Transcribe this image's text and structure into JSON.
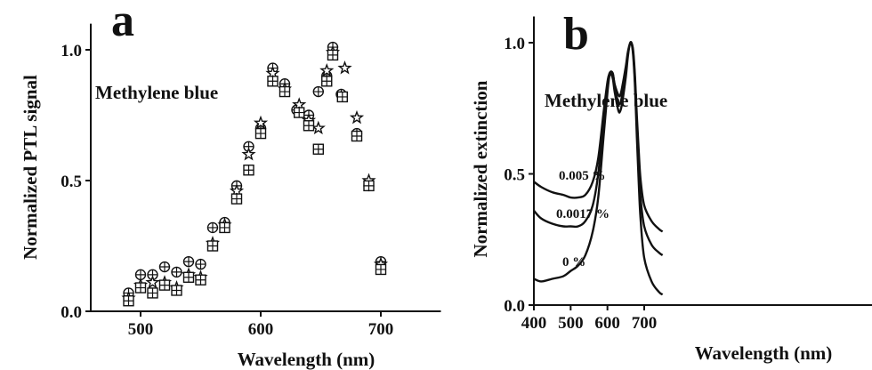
{
  "figure": {
    "bg": "#ffffff",
    "ink": "#111111"
  },
  "chart_data": [
    {
      "panel": "a",
      "type": "scatter",
      "annotation": "Methylene blue",
      "xlabel": "Wavelength (nm)",
      "ylabel": "Normalized PTL signal",
      "xlim": [
        450,
        750
      ],
      "ylim": [
        0.0,
        1.1
      ],
      "x_ticks": [
        500,
        600,
        700
      ],
      "x_tick_labels": [
        "500",
        "600",
        "700"
      ],
      "y_ticks": [
        0.0,
        0.5,
        1.0
      ],
      "y_tick_labels": [
        "0.0",
        "0.5",
        "1.0"
      ],
      "grid": false,
      "series": [
        {
          "marker": "circle-plus",
          "points": [
            [
              490,
              0.07
            ],
            [
              500,
              0.14
            ],
            [
              510,
              0.14
            ],
            [
              520,
              0.17
            ],
            [
              530,
              0.15
            ],
            [
              540,
              0.19
            ],
            [
              550,
              0.18
            ],
            [
              560,
              0.32
            ],
            [
              570,
              0.34
            ],
            [
              580,
              0.48
            ],
            [
              590,
              0.63
            ],
            [
              600,
              0.7
            ],
            [
              610,
              0.93
            ],
            [
              620,
              0.87
            ],
            [
              630,
              0.77
            ],
            [
              640,
              0.75
            ],
            [
              648,
              0.84
            ],
            [
              655,
              0.9
            ],
            [
              660,
              1.01
            ],
            [
              667,
              0.83
            ],
            [
              680,
              0.68
            ],
            [
              690,
              0.48
            ],
            [
              700,
              0.19
            ]
          ]
        },
        {
          "marker": "star",
          "points": [
            [
              490,
              0.05
            ],
            [
              500,
              0.1
            ],
            [
              510,
              0.11
            ],
            [
              520,
              0.11
            ],
            [
              530,
              0.09
            ],
            [
              540,
              0.14
            ],
            [
              550,
              0.13
            ],
            [
              560,
              0.26
            ],
            [
              570,
              0.33
            ],
            [
              580,
              0.46
            ],
            [
              590,
              0.6
            ],
            [
              600,
              0.72
            ],
            [
              610,
              0.91
            ],
            [
              620,
              0.85
            ],
            [
              632,
              0.79
            ],
            [
              640,
              0.73
            ],
            [
              648,
              0.7
            ],
            [
              655,
              0.92
            ],
            [
              660,
              0.99
            ],
            [
              670,
              0.93
            ],
            [
              680,
              0.74
            ],
            [
              690,
              0.5
            ],
            [
              700,
              0.18
            ]
          ]
        },
        {
          "marker": "square-plus",
          "points": [
            [
              490,
              0.04
            ],
            [
              500,
              0.09
            ],
            [
              510,
              0.07
            ],
            [
              520,
              0.1
            ],
            [
              530,
              0.08
            ],
            [
              540,
              0.13
            ],
            [
              550,
              0.12
            ],
            [
              560,
              0.25
            ],
            [
              570,
              0.32
            ],
            [
              580,
              0.43
            ],
            [
              590,
              0.54
            ],
            [
              600,
              0.68
            ],
            [
              610,
              0.88
            ],
            [
              620,
              0.84
            ],
            [
              632,
              0.76
            ],
            [
              640,
              0.71
            ],
            [
              648,
              0.62
            ],
            [
              655,
              0.88
            ],
            [
              660,
              0.98
            ],
            [
              668,
              0.82
            ],
            [
              680,
              0.67
            ],
            [
              690,
              0.48
            ],
            [
              700,
              0.16
            ]
          ]
        }
      ]
    },
    {
      "panel": "b",
      "type": "line",
      "annotation": "Methylene blue",
      "xlabel": "Wavelength (nm)",
      "ylabel": "Normalized extinction",
      "xlim": [
        400,
        750
      ],
      "ylim": [
        0.0,
        1.1
      ],
      "x_ticks": [
        400,
        500,
        600,
        700
      ],
      "x_tick_labels": [
        "400",
        "500",
        "600",
        "700"
      ],
      "y_ticks": [
        0.0,
        0.5,
        1.0
      ],
      "y_tick_labels": [
        "0.0",
        "0.5",
        "1.0"
      ],
      "grid": false,
      "series": [
        {
          "name": "0.005 %",
          "x": [
            400,
            420,
            450,
            480,
            500,
            520,
            540,
            560,
            575,
            590,
            600,
            605,
            610,
            615,
            620,
            630,
            635,
            640,
            650,
            655,
            660,
            665,
            670,
            675,
            680,
            685,
            690,
            700,
            720,
            740,
            750
          ],
          "y": [
            0.47,
            0.45,
            0.43,
            0.42,
            0.41,
            0.41,
            0.42,
            0.47,
            0.56,
            0.74,
            0.85,
            0.88,
            0.89,
            0.88,
            0.84,
            0.8,
            0.8,
            0.83,
            0.91,
            0.96,
            0.99,
            1.0,
            0.97,
            0.87,
            0.72,
            0.59,
            0.48,
            0.38,
            0.32,
            0.29,
            0.28
          ]
        },
        {
          "name": "0.0017 %",
          "x": [
            400,
            420,
            450,
            480,
            500,
            520,
            540,
            560,
            575,
            590,
            600,
            605,
            610,
            615,
            620,
            630,
            635,
            640,
            650,
            655,
            660,
            665,
            670,
            675,
            680,
            685,
            690,
            700,
            720,
            740,
            750
          ],
          "y": [
            0.36,
            0.33,
            0.31,
            0.3,
            0.3,
            0.3,
            0.32,
            0.38,
            0.5,
            0.71,
            0.84,
            0.88,
            0.89,
            0.88,
            0.83,
            0.77,
            0.77,
            0.8,
            0.89,
            0.95,
            0.99,
            1.0,
            0.96,
            0.85,
            0.68,
            0.53,
            0.41,
            0.3,
            0.23,
            0.2,
            0.19
          ]
        },
        {
          "name": "0 %",
          "x": [
            400,
            420,
            450,
            480,
            500,
            520,
            540,
            560,
            575,
            590,
            600,
            605,
            610,
            615,
            620,
            630,
            635,
            640,
            650,
            655,
            660,
            665,
            670,
            675,
            680,
            685,
            690,
            700,
            720,
            740,
            750
          ],
          "y": [
            0.1,
            0.09,
            0.1,
            0.11,
            0.13,
            0.15,
            0.19,
            0.28,
            0.41,
            0.65,
            0.81,
            0.87,
            0.88,
            0.86,
            0.81,
            0.74,
            0.74,
            0.77,
            0.87,
            0.94,
            0.99,
            1.0,
            0.95,
            0.83,
            0.64,
            0.47,
            0.33,
            0.18,
            0.09,
            0.05,
            0.04
          ]
        }
      ]
    }
  ]
}
